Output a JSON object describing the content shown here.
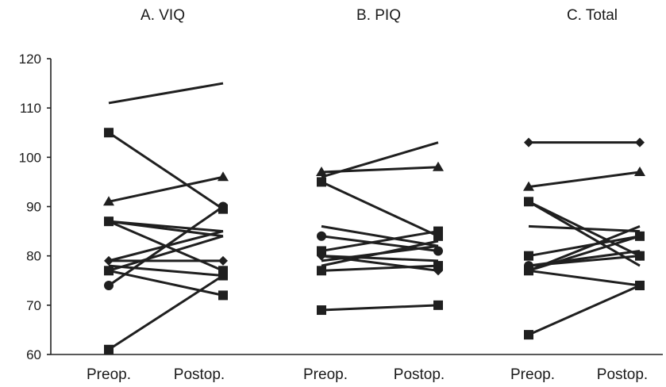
{
  "chart_data": {
    "type": "line",
    "y_axis": {
      "ylim": [
        60,
        120
      ],
      "ticks": [
        60,
        70,
        80,
        90,
        100,
        110,
        120
      ]
    },
    "categories": [
      "Preop.",
      "Postop."
    ],
    "grid": false,
    "panels": [
      {
        "title": "A. VIQ",
        "series": [
          {
            "marker": "none",
            "values": [
              111,
              115
            ]
          },
          {
            "marker": "square",
            "values": [
              105,
              89.5
            ]
          },
          {
            "marker": "triangle",
            "values": [
              91,
              96
            ]
          },
          {
            "marker": "square",
            "values": [
              87,
              77
            ]
          },
          {
            "marker": "none",
            "values": [
              87,
              85
            ]
          },
          {
            "marker": "none",
            "values": [
              87,
              84
            ]
          },
          {
            "marker": "diamond",
            "values": [
              79,
              79
            ]
          },
          {
            "marker": "none",
            "values": [
              79,
              85
            ]
          },
          {
            "marker": "square",
            "values": [
              77,
              72
            ]
          },
          {
            "marker": "none",
            "values": [
              77,
              84
            ]
          },
          {
            "marker": "circle",
            "values": [
              74,
              90
            ]
          },
          {
            "marker": "none",
            "values": [
              78,
              76
            ]
          },
          {
            "marker": "square",
            "values": [
              61,
              76
            ]
          }
        ]
      },
      {
        "title": "B. PIQ",
        "series": [
          {
            "marker": "triangle",
            "values": [
              97,
              98
            ]
          },
          {
            "marker": "none",
            "values": [
              96,
              103
            ]
          },
          {
            "marker": "square",
            "values": [
              95,
              84
            ]
          },
          {
            "marker": "none",
            "values": [
              86,
              82
            ]
          },
          {
            "marker": "circle",
            "values": [
              84,
              81
            ]
          },
          {
            "marker": "square",
            "values": [
              81,
              85
            ]
          },
          {
            "marker": "none",
            "values": [
              80,
              79
            ]
          },
          {
            "marker": "none",
            "values": [
              79,
              82
            ]
          },
          {
            "marker": "diamond",
            "values": [
              80,
              77
            ]
          },
          {
            "marker": "none",
            "values": [
              78,
              83
            ]
          },
          {
            "marker": "square",
            "values": [
              77,
              78
            ]
          },
          {
            "marker": "square",
            "values": [
              69,
              70
            ]
          }
        ]
      },
      {
        "title": "C. Total",
        "series": [
          {
            "marker": "diamond",
            "values": [
              103,
              103
            ]
          },
          {
            "marker": "triangle",
            "values": [
              94,
              97
            ]
          },
          {
            "marker": "square",
            "values": [
              91,
              80
            ]
          },
          {
            "marker": "none",
            "values": [
              86,
              85
            ]
          },
          {
            "marker": "none",
            "values": [
              91,
              78
            ]
          },
          {
            "marker": "square",
            "values": [
              80,
              84
            ]
          },
          {
            "marker": "none",
            "values": [
              78,
              81
            ]
          },
          {
            "marker": "circle",
            "values": [
              78,
              80
            ]
          },
          {
            "marker": "none",
            "values": [
              77,
              86
            ]
          },
          {
            "marker": "none",
            "values": [
              77,
              84
            ]
          },
          {
            "marker": "square",
            "values": [
              77,
              74
            ]
          },
          {
            "marker": "square",
            "values": [
              64,
              74
            ]
          }
        ]
      }
    ]
  }
}
